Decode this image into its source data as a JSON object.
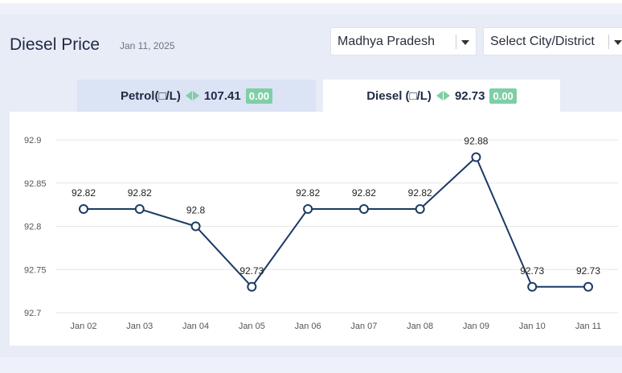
{
  "header": {
    "title": "Diesel Price",
    "date": "Jan 11, 2025"
  },
  "filters": {
    "state": "Madhya Pradesh",
    "city": "Select City/District"
  },
  "tabs": {
    "petrol": {
      "label": "Petrol(□/L)",
      "price": "107.41",
      "change": "0.00"
    },
    "diesel": {
      "label": "Diesel (□/L)",
      "price": "92.73",
      "change": "0.00"
    }
  },
  "colors": {
    "line": "#1c3a63",
    "accent_green": "#7fcfa6",
    "active_tab": "#ffffff",
    "inactive_tab": "#dbe3f5"
  },
  "chart_data": {
    "type": "line",
    "categories": [
      "Jan 02",
      "Jan 03",
      "Jan 04",
      "Jan 05",
      "Jan 06",
      "Jan 07",
      "Jan 08",
      "Jan 09",
      "Jan 10",
      "Jan 11"
    ],
    "values": [
      92.82,
      92.82,
      92.8,
      92.73,
      92.82,
      92.82,
      92.82,
      92.88,
      92.73,
      92.73
    ],
    "data_labels": [
      "92.82",
      "92.82",
      "92.8",
      "92.73",
      "92.82",
      "92.82",
      "92.82",
      "92.88",
      "92.73",
      "92.73"
    ],
    "yticks": [
      "92.7",
      "92.75",
      "92.8",
      "92.85",
      "92.9"
    ],
    "ylim": [
      92.7,
      92.9
    ],
    "grid": true
  }
}
